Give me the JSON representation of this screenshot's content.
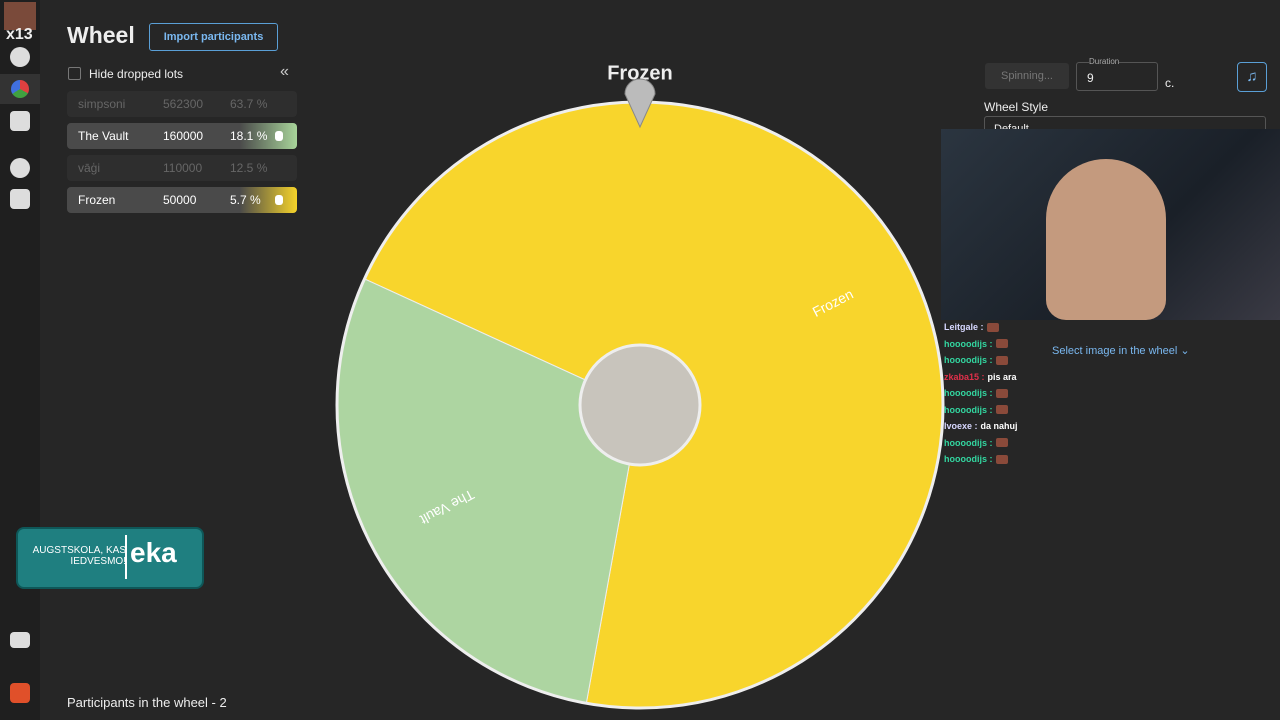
{
  "sidebar": {
    "badge": "x13"
  },
  "header": {
    "title": "Wheel",
    "import_button": "Import participants"
  },
  "hide_dropped": "Hide dropped lots",
  "lots": [
    {
      "name": "simpsoni",
      "amount": 562300,
      "percent": "63.7 %",
      "dropped": true
    },
    {
      "name": "The Vault",
      "amount": 160000,
      "percent": "18.1 %",
      "dropped": false,
      "color": "#a8d49a"
    },
    {
      "name": "vāģi",
      "amount": 110000,
      "percent": "12.5 %",
      "dropped": true
    },
    {
      "name": "Frozen",
      "amount": 50000,
      "percent": "5.7 %",
      "dropped": false,
      "color": "#f5d32a"
    }
  ],
  "wheel": {
    "winner": "Frozen",
    "segments": [
      {
        "name": "Frozen",
        "share": 71,
        "color": "#f8d52c"
      },
      {
        "name": "The Vault",
        "share": 29,
        "color": "#add5a1"
      }
    ]
  },
  "controls": {
    "spin_button": "Spinning...",
    "duration_label": "Duration",
    "duration": 9,
    "duration_unit": "c.",
    "wheel_style_label": "Wheel Style",
    "wheel_style": "Default",
    "image_select": "Select image in the wheel"
  },
  "chat": [
    {
      "user": "Leitgale :",
      "color": "#d8d8ff",
      "text": null
    },
    {
      "user": "hoooodijs :",
      "color": "#33d6a0",
      "text": null
    },
    {
      "user": "hoooodijs :",
      "color": "#33d6a0",
      "text": null
    },
    {
      "user": "zkaba15 :",
      "color": "#e0304a",
      "text": "pis ara"
    },
    {
      "user": "hoooodijs :",
      "color": "#33d6a0",
      "text": null
    },
    {
      "user": "hoooodijs :",
      "color": "#33d6a0",
      "text": null
    },
    {
      "user": "lvoexe :",
      "color": "#d8d8ff",
      "text": "da nahuj"
    },
    {
      "user": "hoooodijs :",
      "color": "#33d6a0",
      "text": null
    },
    {
      "user": "hoooodijs :",
      "color": "#33d6a0",
      "text": null
    }
  ],
  "participants": "Participants in the wheel - 2",
  "ad": {
    "text": "AUGSTSKOLA, KAS IEDVESMO!",
    "brand": "eka"
  }
}
